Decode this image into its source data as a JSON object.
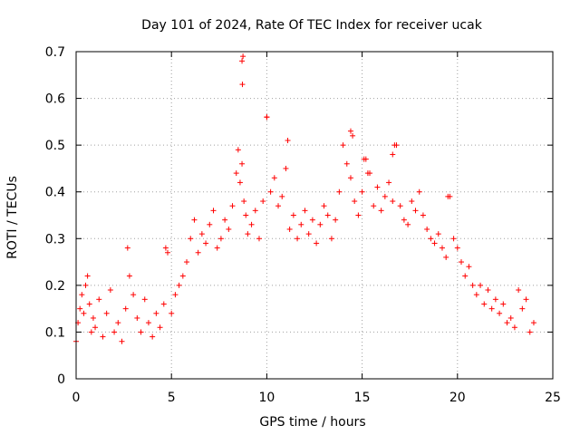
{
  "chart_data": {
    "type": "scatter",
    "title": "Day 101 of 2024, Rate Of TEC Index for receiver ucak",
    "xlabel": "GPS time / hours",
    "ylabel": "ROTI / TECUs",
    "xlim": [
      0,
      25
    ],
    "ylim": [
      0,
      0.7
    ],
    "xticks": [
      0,
      5,
      10,
      15,
      20,
      25
    ],
    "yticks": [
      0,
      0.1,
      0.2,
      0.3,
      0.4,
      0.5,
      0.6,
      0.7
    ],
    "ytick_labels": [
      "0",
      "0.1",
      "0.2",
      "0.3",
      "0.4",
      "0.5",
      "0.6",
      "0.7"
    ],
    "grid": true,
    "marker": "+",
    "color": "#ff0000",
    "series": [
      {
        "x": [
          0.0,
          0.1,
          0.2,
          0.3,
          0.4,
          0.5,
          0.6,
          0.7,
          0.8,
          0.9,
          1.0,
          1.2,
          1.4,
          1.6,
          1.8,
          2.0,
          2.2,
          2.4,
          2.6,
          2.7,
          2.8,
          3.0,
          3.2,
          3.4,
          3.6,
          3.8,
          4.0,
          4.2,
          4.4,
          4.6,
          4.7,
          4.8,
          5.0,
          5.2,
          5.4,
          5.6,
          5.8,
          6.0,
          6.2,
          6.4,
          6.6,
          6.8,
          7.0,
          7.2,
          7.4,
          7.6,
          7.8,
          8.0,
          8.2,
          8.4,
          8.5,
          8.6,
          8.7,
          8.8,
          8.9,
          9.0,
          9.2,
          9.4,
          9.6,
          9.8,
          10.0,
          10.2,
          10.4,
          10.6,
          10.8,
          11.0,
          11.2,
          11.4,
          11.6,
          11.8,
          12.0,
          12.2,
          12.4,
          12.6,
          12.8,
          13.0,
          13.2,
          13.4,
          13.6,
          13.8,
          14.0,
          14.2,
          14.4,
          14.6,
          14.8,
          15.0,
          15.2,
          15.4,
          15.6,
          15.8,
          16.0,
          16.2,
          16.4,
          16.6,
          16.8,
          17.0,
          17.2,
          17.4,
          17.6,
          17.8,
          18.0,
          18.2,
          18.4,
          18.6,
          18.8,
          19.0,
          19.2,
          19.4,
          19.6,
          19.8,
          20.0,
          20.2,
          20.4,
          20.6,
          20.8,
          21.0,
          21.2,
          21.4,
          21.6,
          21.8,
          22.0,
          22.2,
          22.4,
          22.6,
          22.8,
          23.0,
          23.2,
          23.4,
          23.6,
          23.8,
          24.0,
          8.75,
          8.7,
          8.72,
          10.0,
          11.1,
          14.4,
          14.5,
          16.7,
          16.6,
          15.1,
          15.3,
          19.5
        ],
        "y": [
          0.08,
          0.12,
          0.15,
          0.18,
          0.14,
          0.2,
          0.22,
          0.16,
          0.1,
          0.13,
          0.11,
          0.17,
          0.09,
          0.14,
          0.19,
          0.1,
          0.12,
          0.08,
          0.15,
          0.28,
          0.22,
          0.18,
          0.13,
          0.1,
          0.17,
          0.12,
          0.09,
          0.14,
          0.11,
          0.16,
          0.28,
          0.27,
          0.14,
          0.18,
          0.2,
          0.22,
          0.25,
          0.3,
          0.34,
          0.27,
          0.31,
          0.29,
          0.33,
          0.36,
          0.28,
          0.3,
          0.34,
          0.32,
          0.37,
          0.44,
          0.49,
          0.42,
          0.46,
          0.38,
          0.35,
          0.31,
          0.33,
          0.36,
          0.3,
          0.38,
          0.56,
          0.4,
          0.43,
          0.37,
          0.39,
          0.45,
          0.32,
          0.35,
          0.3,
          0.33,
          0.36,
          0.31,
          0.34,
          0.29,
          0.33,
          0.37,
          0.35,
          0.3,
          0.34,
          0.4,
          0.5,
          0.46,
          0.43,
          0.38,
          0.35,
          0.4,
          0.47,
          0.44,
          0.37,
          0.41,
          0.36,
          0.39,
          0.42,
          0.38,
          0.5,
          0.37,
          0.34,
          0.33,
          0.38,
          0.36,
          0.4,
          0.35,
          0.32,
          0.3,
          0.29,
          0.31,
          0.28,
          0.26,
          0.39,
          0.3,
          0.28,
          0.25,
          0.22,
          0.24,
          0.2,
          0.18,
          0.2,
          0.16,
          0.19,
          0.15,
          0.17,
          0.14,
          0.16,
          0.12,
          0.13,
          0.11,
          0.19,
          0.15,
          0.17,
          0.1,
          0.12,
          0.69,
          0.68,
          0.63,
          0.56,
          0.51,
          0.53,
          0.52,
          0.5,
          0.48,
          0.47,
          0.44,
          0.39
        ]
      }
    ]
  }
}
